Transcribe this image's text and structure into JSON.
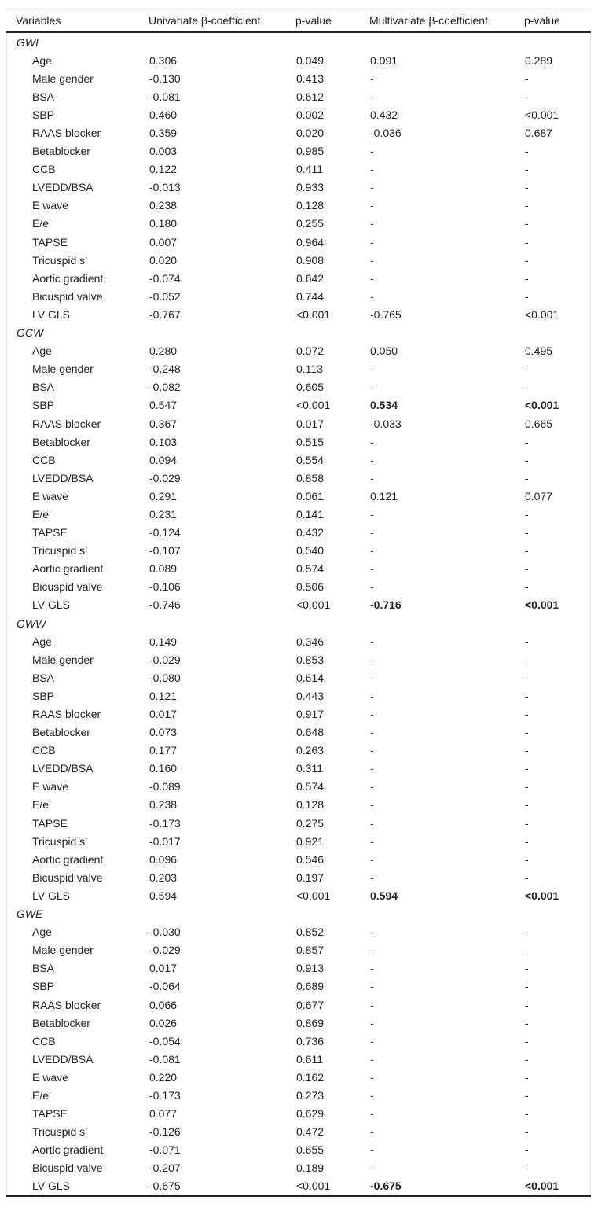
{
  "headers": [
    "Variables",
    "Univariate β-coefficient",
    "p-value",
    "Multivariate β-coefficient",
    "p-value"
  ],
  "groups": [
    {
      "name": "GWI",
      "rows": [
        {
          "variable": "Age",
          "uni_beta": "0.306",
          "uni_p": "0.049",
          "multi_beta": "0.091",
          "multi_p": "0.289"
        },
        {
          "variable": "Male gender",
          "uni_beta": "-0.130",
          "uni_p": "0.413",
          "multi_beta": "-",
          "multi_p": "-"
        },
        {
          "variable": "BSA",
          "uni_beta": "-0.081",
          "uni_p": "0.612",
          "multi_beta": "-",
          "multi_p": "-"
        },
        {
          "variable": "SBP",
          "uni_beta": "0.460",
          "uni_p": "0.002",
          "multi_beta": "0.432",
          "multi_p": "<0.001"
        },
        {
          "variable": "RAAS blocker",
          "uni_beta": "0.359",
          "uni_p": "0.020",
          "multi_beta": "-0.036",
          "multi_p": "0.687"
        },
        {
          "variable": "Betablocker",
          "uni_beta": "0.003",
          "uni_p": "0.985",
          "multi_beta": "-",
          "multi_p": "-"
        },
        {
          "variable": "CCB",
          "uni_beta": "0.122",
          "uni_p": "0.411",
          "multi_beta": "-",
          "multi_p": "-"
        },
        {
          "variable": "LVEDD/BSA",
          "uni_beta": "-0.013",
          "uni_p": "0.933",
          "multi_beta": "-",
          "multi_p": "-"
        },
        {
          "variable": "E wave",
          "uni_beta": "0.238",
          "uni_p": "0.128",
          "multi_beta": "-",
          "multi_p": "-"
        },
        {
          "variable": "E/e’",
          "uni_beta": "0.180",
          "uni_p": "0.255",
          "multi_beta": "-",
          "multi_p": "-"
        },
        {
          "variable": "TAPSE",
          "uni_beta": "0.007",
          "uni_p": "0.964",
          "multi_beta": "-",
          "multi_p": "-"
        },
        {
          "variable": "Tricuspid s’",
          "uni_beta": "0.020",
          "uni_p": "0.908",
          "multi_beta": "-",
          "multi_p": "-"
        },
        {
          "variable": "Aortic gradient",
          "uni_beta": "-0.074",
          "uni_p": "0.642",
          "multi_beta": "-",
          "multi_p": "-"
        },
        {
          "variable": "Bicuspid valve",
          "uni_beta": "-0.052",
          "uni_p": "0.744",
          "multi_beta": "-",
          "multi_p": "-"
        },
        {
          "variable": "LV GLS",
          "uni_beta": "-0.767",
          "uni_p": "<0.001",
          "multi_beta": "-0.765",
          "multi_p": "<0.001"
        }
      ]
    },
    {
      "name": "GCW",
      "rows": [
        {
          "variable": "Age",
          "uni_beta": "0.280",
          "uni_p": "0.072",
          "multi_beta": "0.050",
          "multi_p": "0.495"
        },
        {
          "variable": "Male gender",
          "uni_beta": "-0.248",
          "uni_p": "0.113",
          "multi_beta": "-",
          "multi_p": "-"
        },
        {
          "variable": "BSA",
          "uni_beta": "-0.082",
          "uni_p": "0.605",
          "multi_beta": "-",
          "multi_p": "-"
        },
        {
          "variable": "SBP",
          "uni_beta": "0.547",
          "uni_p": "<0.001",
          "multi_beta": "0.534",
          "multi_p": "<0.001",
          "bold": true
        },
        {
          "variable": "RAAS blocker",
          "uni_beta": "0.367",
          "uni_p": "0.017",
          "multi_beta": "-0.033",
          "multi_p": "0.665"
        },
        {
          "variable": "Betablocker",
          "uni_beta": "0.103",
          "uni_p": "0.515",
          "multi_beta": "-",
          "multi_p": "-"
        },
        {
          "variable": "CCB",
          "uni_beta": "0.094",
          "uni_p": "0.554",
          "multi_beta": "-",
          "multi_p": "-"
        },
        {
          "variable": "LVEDD/BSA",
          "uni_beta": "-0.029",
          "uni_p": "0.858",
          "multi_beta": "-",
          "multi_p": "-"
        },
        {
          "variable": "E wave",
          "uni_beta": "0.291",
          "uni_p": "0.061",
          "multi_beta": "0.121",
          "multi_p": "0.077"
        },
        {
          "variable": "E/e’",
          "uni_beta": "0.231",
          "uni_p": "0.141",
          "multi_beta": "-",
          "multi_p": "-"
        },
        {
          "variable": "TAPSE",
          "uni_beta": "-0.124",
          "uni_p": "0.432",
          "multi_beta": "-",
          "multi_p": "-"
        },
        {
          "variable": "Tricuspid s’",
          "uni_beta": "-0.107",
          "uni_p": "0.540",
          "multi_beta": "-",
          "multi_p": "-"
        },
        {
          "variable": "Aortic gradient",
          "uni_beta": "0.089",
          "uni_p": "0.574",
          "multi_beta": "-",
          "multi_p": "-"
        },
        {
          "variable": "Bicuspid valve",
          "uni_beta": "-0.106",
          "uni_p": "0.506",
          "multi_beta": "-",
          "multi_p": "-"
        },
        {
          "variable": "LV GLS",
          "uni_beta": "-0.746",
          "uni_p": "<0.001",
          "multi_beta": "-0.716",
          "multi_p": "<0.001",
          "bold": true
        }
      ]
    },
    {
      "name": "GWW",
      "rows": [
        {
          "variable": "Age",
          "uni_beta": "0.149",
          "uni_p": "0.346",
          "multi_beta": "-",
          "multi_p": "-"
        },
        {
          "variable": "Male gender",
          "uni_beta": "-0.029",
          "uni_p": "0.853",
          "multi_beta": "-",
          "multi_p": "-"
        },
        {
          "variable": "BSA",
          "uni_beta": "-0.080",
          "uni_p": "0.614",
          "multi_beta": "-",
          "multi_p": "-"
        },
        {
          "variable": "SBP",
          "uni_beta": "0.121",
          "uni_p": "0.443",
          "multi_beta": "-",
          "multi_p": "-"
        },
        {
          "variable": "RAAS blocker",
          "uni_beta": "0.017",
          "uni_p": "0.917",
          "multi_beta": "-",
          "multi_p": "-"
        },
        {
          "variable": "Betablocker",
          "uni_beta": "0.073",
          "uni_p": "0.648",
          "multi_beta": "-",
          "multi_p": "-"
        },
        {
          "variable": "CCB",
          "uni_beta": "0.177",
          "uni_p": "0.263",
          "multi_beta": "-",
          "multi_p": "-"
        },
        {
          "variable": "LVEDD/BSA",
          "uni_beta": "0.160",
          "uni_p": "0.311",
          "multi_beta": "-",
          "multi_p": "-"
        },
        {
          "variable": "E wave",
          "uni_beta": "-0.089",
          "uni_p": "0.574",
          "multi_beta": "-",
          "multi_p": "-"
        },
        {
          "variable": "E/e’",
          "uni_beta": "0.238",
          "uni_p": "0.128",
          "multi_beta": "-",
          "multi_p": "-"
        },
        {
          "variable": "TAPSE",
          "uni_beta": "-0.173",
          "uni_p": "0.275",
          "multi_beta": "-",
          "multi_p": "-"
        },
        {
          "variable": "Tricuspid s’",
          "uni_beta": "-0.017",
          "uni_p": "0.921",
          "multi_beta": "-",
          "multi_p": "-"
        },
        {
          "variable": "Aortic gradient",
          "uni_beta": "0.096",
          "uni_p": "0.546",
          "multi_beta": "-",
          "multi_p": "-"
        },
        {
          "variable": "Bicuspid valve",
          "uni_beta": "0.203",
          "uni_p": "0.197",
          "multi_beta": "-",
          "multi_p": "-"
        },
        {
          "variable": "LV GLS",
          "uni_beta": "0.594",
          "uni_p": "<0.001",
          "multi_beta": "0.594",
          "multi_p": "<0.001",
          "bold": true
        }
      ]
    },
    {
      "name": "GWE",
      "rows": [
        {
          "variable": "Age",
          "uni_beta": "-0.030",
          "uni_p": "0.852",
          "multi_beta": "-",
          "multi_p": "-"
        },
        {
          "variable": "Male gender",
          "uni_beta": "-0.029",
          "uni_p": "0.857",
          "multi_beta": "-",
          "multi_p": "-"
        },
        {
          "variable": "BSA",
          "uni_beta": "0.017",
          "uni_p": "0.913",
          "multi_beta": "-",
          "multi_p": "-"
        },
        {
          "variable": "SBP",
          "uni_beta": "-0.064",
          "uni_p": "0.689",
          "multi_beta": "-",
          "multi_p": "-"
        },
        {
          "variable": "RAAS blocker",
          "uni_beta": "0.066",
          "uni_p": "0.677",
          "multi_beta": "-",
          "multi_p": "-"
        },
        {
          "variable": "Betablocker",
          "uni_beta": "0.026",
          "uni_p": "0.869",
          "multi_beta": "-",
          "multi_p": "-"
        },
        {
          "variable": "CCB",
          "uni_beta": "-0.054",
          "uni_p": "0.736",
          "multi_beta": "-",
          "multi_p": "-"
        },
        {
          "variable": "LVEDD/BSA",
          "uni_beta": "-0.081",
          "uni_p": "0.611",
          "multi_beta": "-",
          "multi_p": "-"
        },
        {
          "variable": "E wave",
          "uni_beta": "0.220",
          "uni_p": "0.162",
          "multi_beta": "-",
          "multi_p": "-"
        },
        {
          "variable": "E/e’",
          "uni_beta": "-0.173",
          "uni_p": "0.273",
          "multi_beta": "-",
          "multi_p": "-"
        },
        {
          "variable": "TAPSE",
          "uni_beta": "0.077",
          "uni_p": "0.629",
          "multi_beta": "-",
          "multi_p": "-"
        },
        {
          "variable": "Tricuspid s’",
          "uni_beta": "-0.126",
          "uni_p": "0.472",
          "multi_beta": "-",
          "multi_p": "-"
        },
        {
          "variable": "Aortic gradient",
          "uni_beta": "-0.071",
          "uni_p": "0.655",
          "multi_beta": "-",
          "multi_p": "-"
        },
        {
          "variable": "Bicuspid valve",
          "uni_beta": "-0.207",
          "uni_p": "0.189",
          "multi_beta": "-",
          "multi_p": "-"
        },
        {
          "variable": "LV GLS",
          "uni_beta": "-0.675",
          "uni_p": "<0.001",
          "multi_beta": "-0.675",
          "multi_p": "<0.001",
          "bold": true
        }
      ]
    }
  ]
}
